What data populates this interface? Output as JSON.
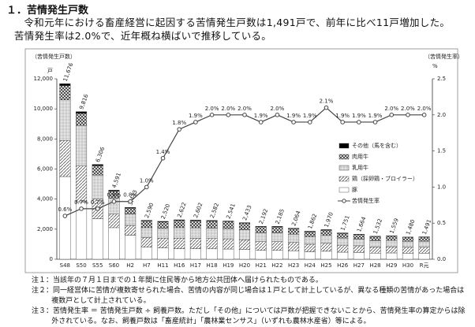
{
  "heading": "１．苦情発生戸数",
  "paragraph": "令和元年における畜産経営に起因する苦情発生戸数は1,491戸で、前年に比べ11戸増加した。苦情発生率は2.0%で、近年概ね横ばいで推移している。",
  "notes": [
    "注１：当該年の７月１日までの１年間に住民等から地方公共団体へ届けられたものである。",
    "注２：同一経営体に苦情が複数寄せられた場合、苦情の内容が同じ場合は１戸として計上しているが、異なる種類の苦情があった場合は複数戸として計上されている。",
    "注３：苦情発生率 ＝ 苦情発生戸数 ÷ 飼養戸数。ただし「その他」については戸数が把握できないことから、苦情発生率の算定からは除外されている。なお、飼養戸数は「畜産統計」「農林業センサス」（いずれも農林水産省）等による。"
  ],
  "chart_data": {
    "type": "bar",
    "stacked": true,
    "y_axis_title": "（苦情発生戸数）",
    "y_unit": "戸",
    "y2_axis_title": "（苦情発生率）",
    "y2_unit": "%",
    "categories": [
      "S48",
      "S50",
      "S55",
      "S60",
      "H2",
      "H7",
      "H11",
      "H16",
      "H17",
      "H18",
      "H19",
      "H20",
      "H21",
      "H22",
      "H23",
      "H24",
      "H25",
      "H26",
      "H27",
      "H28",
      "H29",
      "H30",
      "R元"
    ],
    "ylim": [
      0,
      12000
    ],
    "yticks": [
      {
        "value": 0,
        "label": "0"
      },
      {
        "value": 2000,
        "label": "2,000"
      },
      {
        "value": 4000,
        "label": "4,000"
      },
      {
        "value": 6000,
        "label": "6,000"
      },
      {
        "value": 8000,
        "label": "8,000"
      },
      {
        "value": 10000,
        "label": "10,000"
      },
      {
        "value": 12000,
        "label": "12,000"
      }
    ],
    "y2lim": [
      0,
      2.5
    ],
    "y2ticks": [
      {
        "value": 0,
        "label": "0.0"
      },
      {
        "value": 0.5,
        "label": "0.5"
      },
      {
        "value": 1,
        "label": "1.0"
      },
      {
        "value": 1.5,
        "label": "1.5"
      },
      {
        "value": 2,
        "label": "2.0"
      },
      {
        "value": 2.5,
        "label": "2.5"
      }
    ],
    "series": [
      {
        "name": "豚",
        "color": "#ffffff",
        "values": [
          5500,
          3800,
          2700,
          2100,
          1600,
          800,
          750,
          700,
          700,
          690,
          680,
          650,
          590,
          590,
          560,
          500,
          530,
          470,
          450,
          410,
          420,
          400,
          400
        ]
      },
      {
        "name": "鶏（採卵鶏・ブロイラー）",
        "color": "#555555",
        "values": [
          2400,
          2400,
          1300,
          900,
          650,
          650,
          650,
          700,
          690,
          690,
          680,
          650,
          580,
          580,
          550,
          500,
          530,
          470,
          445,
          410,
          415,
          395,
          400
        ]
      },
      {
        "name": "乳用牛",
        "color": "#c8c8c8",
        "values": [
          2700,
          2700,
          1600,
          1050,
          750,
          650,
          650,
          700,
          700,
          690,
          680,
          650,
          590,
          585,
          550,
          500,
          530,
          470,
          445,
          410,
          420,
          395,
          400
        ]
      },
      {
        "name": "肉用牛",
        "color": "#333333",
        "values": [
          950,
          800,
          620,
          480,
          400,
          450,
          430,
          480,
          470,
          470,
          460,
          443,
          395,
          393,
          370,
          330,
          345,
          310,
          295,
          275,
          277,
          263,
          264
        ]
      },
      {
        "name": "その他（馬を含む）",
        "color": "#000000",
        "values": [
          126,
          116,
          86,
          61,
          43,
          40,
          40,
          42,
          42,
          42,
          41,
          40,
          37,
          37,
          34,
          32,
          35,
          31,
          29,
          27,
          27,
          27,
          27
        ]
      },
      {
        "name": "苦情発生率",
        "color": "#444444",
        "type": "line",
        "axis": "y2",
        "values": [
          0.6,
          0.7,
          0.7,
          0.8,
          0.8,
          1.0,
          1.4,
          1.8,
          1.9,
          2.0,
          2.0,
          2.0,
          1.9,
          2.0,
          1.9,
          1.9,
          2.1,
          1.9,
          1.9,
          1.9,
          2.0,
          2.0,
          2.0
        ],
        "value_labels": [
          "0.6%",
          "0.7%",
          "0.7%",
          "0.8%",
          "0.8%",
          "1.0%",
          "1.4%",
          "1.8%",
          "1.9%",
          "2.0%",
          "2.0%",
          "2.0%",
          "1.9%",
          "2.0%",
          "1.9%",
          "1.9%",
          "2.1%",
          "1.9%",
          "1.9%",
          "1.9%",
          "2.0%",
          "2.0%",
          "2.0%"
        ]
      }
    ],
    "totals": {
      "values": [
        11676,
        9816,
        6306,
        4591,
        3443,
        2590,
        2520,
        2622,
        2602,
        2582,
        2541,
        2433,
        2192,
        2185,
        2064,
        1862,
        1970,
        1751,
        1664,
        1532,
        1559,
        1480,
        1491
      ],
      "value_labels": [
        "11,676",
        "9,816",
        "6,306",
        "4,591",
        "3,443",
        "2,590",
        "2,520",
        "2,622",
        "2,602",
        "2,582",
        "2,541",
        "2,433",
        "2,192",
        "2,185",
        "2,064",
        "1,862",
        "1,970",
        "1,751",
        "1,664",
        "1,532",
        "1,559",
        "1,480",
        "1,491"
      ]
    }
  }
}
